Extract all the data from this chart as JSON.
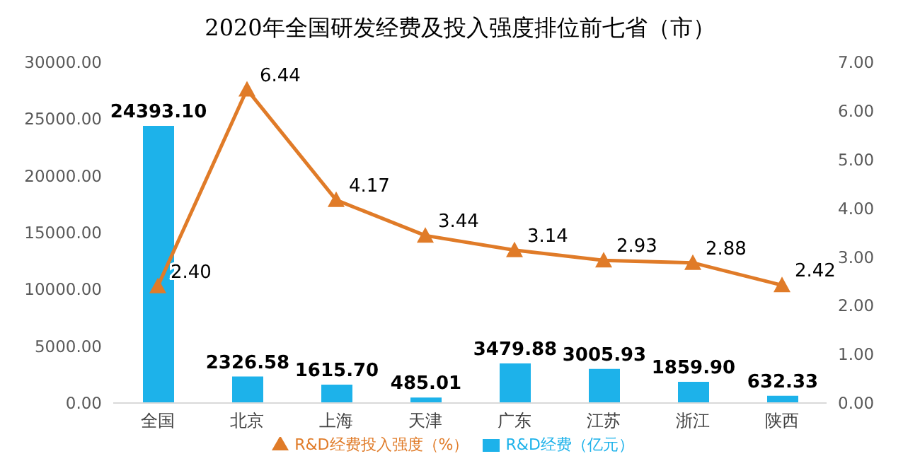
{
  "chart_data": {
    "type": "bar",
    "title": "2020年全国研发经费及投入强度排位前七省（市）",
    "categories": [
      "全国",
      "北京",
      "上海",
      "天津",
      "广东",
      "江苏",
      "浙江",
      "陕西"
    ],
    "series": [
      {
        "name": "R&D经费（亿元）",
        "color": "#1db2ea",
        "values": [
          24393.1,
          2326.58,
          1615.7,
          485.01,
          3479.88,
          3005.93,
          1859.9,
          632.33
        ],
        "value_labels": [
          "24393.10",
          "2326.58",
          "1615.70",
          "485.01",
          "3479.88",
          "3005.93",
          "1859.90",
          "632.33"
        ]
      },
      {
        "name": "R&D经费投入强度（%）",
        "type": "line",
        "axis": "y2",
        "color": "#e07b28",
        "marker": "triangle",
        "values": [
          2.4,
          6.44,
          4.17,
          3.44,
          3.14,
          2.93,
          2.88,
          2.42
        ],
        "value_labels": [
          "2.40",
          "6.44",
          "4.17",
          "3.44",
          "3.14",
          "2.93",
          "2.88",
          "2.42"
        ]
      }
    ],
    "ylim": [
      0,
      30000
    ],
    "yticks": [
      {
        "value": 0,
        "label": "0.00"
      },
      {
        "value": 5000,
        "label": "5000.00"
      },
      {
        "value": 10000,
        "label": "10000.00"
      },
      {
        "value": 15000,
        "label": "15000.00"
      },
      {
        "value": 20000,
        "label": "20000.00"
      },
      {
        "value": 25000,
        "label": "25000.00"
      },
      {
        "value": 30000,
        "label": "30000.00"
      }
    ],
    "y2lim": [
      0,
      7
    ],
    "y2ticks": [
      {
        "value": 0,
        "label": "0.00"
      },
      {
        "value": 1,
        "label": "1.00"
      },
      {
        "value": 2,
        "label": "2.00"
      },
      {
        "value": 3,
        "label": "3.00"
      },
      {
        "value": 4,
        "label": "4.00"
      },
      {
        "value": 5,
        "label": "5.00"
      },
      {
        "value": 6,
        "label": "6.00"
      },
      {
        "value": 7,
        "label": "7.00"
      }
    ],
    "legend": "bottom"
  }
}
